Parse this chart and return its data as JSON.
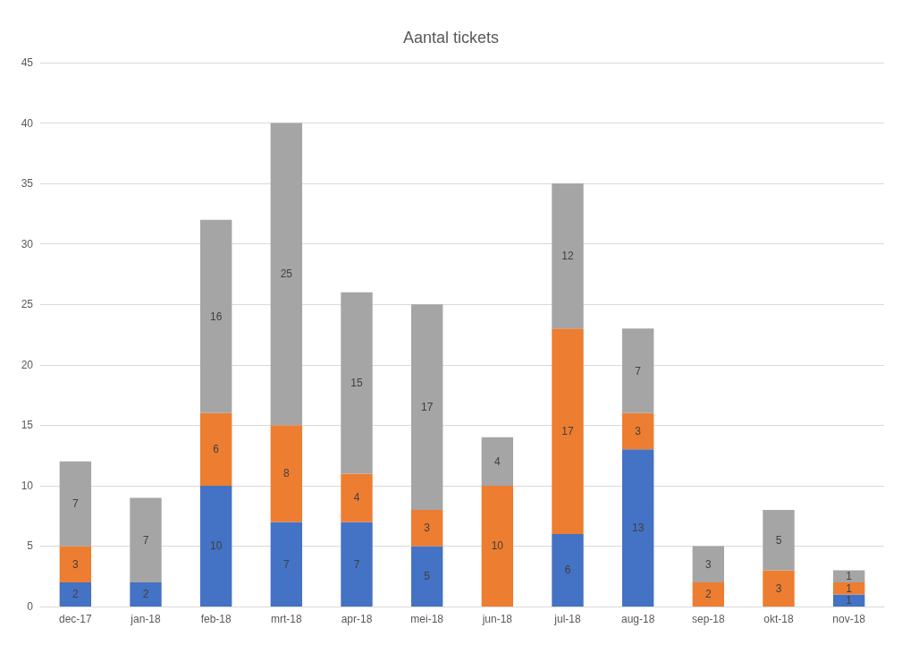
{
  "chart_data": {
    "type": "bar",
    "title": "Aantal tickets",
    "stacked": true,
    "data_labels": true,
    "grid": "y",
    "categories": [
      "dec-17",
      "jan-18",
      "feb-18",
      "mrt-18",
      "apr-18",
      "mei-18",
      "jun-18",
      "jul-18",
      "aug-18",
      "sep-18",
      "okt-18",
      "nov-18"
    ],
    "ylim": [
      0,
      45
    ],
    "yticks": [
      0,
      5,
      10,
      15,
      20,
      25,
      30,
      35,
      40,
      45
    ],
    "series": [
      {
        "color": "#4472c4",
        "values": [
          2,
          2,
          10,
          7,
          7,
          5,
          null,
          6,
          13,
          null,
          null,
          1
        ]
      },
      {
        "color": "#ed7d31",
        "values": [
          3,
          null,
          6,
          8,
          4,
          3,
          10,
          17,
          3,
          2,
          3,
          1
        ]
      },
      {
        "color": "#a5a5a5",
        "values": [
          7,
          7,
          16,
          25,
          15,
          17,
          4,
          12,
          7,
          3,
          5,
          1
        ]
      }
    ]
  }
}
